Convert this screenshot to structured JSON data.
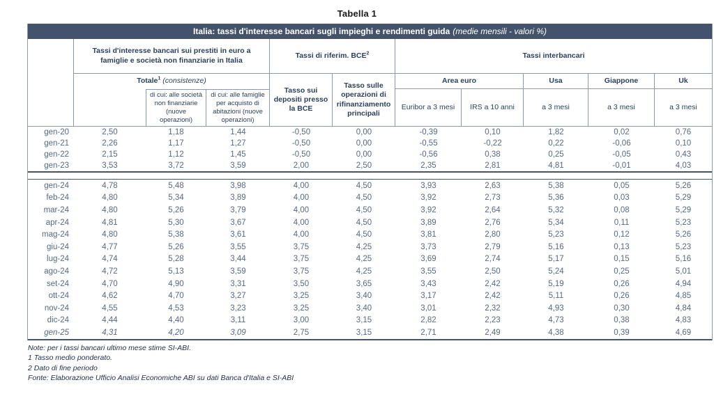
{
  "page_title": "Tabella 1",
  "table": {
    "title_main": "Italia: tassi d'interesse bancari sugli impieghi e rendimenti guida",
    "title_italic": "(medie mensili - valori %)",
    "colors": {
      "titlebar_bg": "#44526b",
      "header_text": "#2c4158",
      "data_text": "#57697f",
      "thin_border": "#8a99ab",
      "thick_border": "#44526b"
    },
    "groups": {
      "loans": "Tassi d'interesse bancari sui prestiti in euro a famiglie e società non finanziarie in Italia",
      "bce": "Tassi di riferim. BCE",
      "bce_sup": "2",
      "interbank": "Tassi interbancari"
    },
    "subheaders": {
      "totale": "Totale",
      "totale_sup": "1",
      "totale_note": "(consistenze)",
      "societa": "di cui: alle società non finanziarie (nuove operazioni)",
      "famiglie": "di cui: alle famiglie per acquisto di abitazioni (nuove operazioni)",
      "depositi": "Tasso sui depositi presso la BCE",
      "rifinanziamento": "Tasso sulle operazioni di rifinanziamento principali",
      "area_euro": "Area euro",
      "usa": "Usa",
      "giappone": "Giappone",
      "uk": "Uk",
      "euribor": "Euribor a 3 mesi",
      "irs": "IRS a 10 anni",
      "usa_3m": "a 3 mesi",
      "giappone_3m": "a 3 mesi",
      "uk_3m": "a 3 mesi"
    },
    "block1": [
      {
        "label": "gen-20",
        "values": [
          "2,50",
          "1,18",
          "1,44",
          "-0,50",
          "0,00",
          "-0,39",
          "0,10",
          "1,82",
          "0,02",
          "0,76"
        ]
      },
      {
        "label": "gen-21",
        "values": [
          "2,26",
          "1,17",
          "1,27",
          "-0,50",
          "0,00",
          "-0,55",
          "-0,22",
          "0,22",
          "-0,06",
          "0,10"
        ]
      },
      {
        "label": "gen-22",
        "values": [
          "2,15",
          "1,12",
          "1,45",
          "-0,50",
          "0,00",
          "-0,56",
          "0,38",
          "0,25",
          "-0,05",
          "0,43"
        ]
      },
      {
        "label": "gen-23",
        "values": [
          "3,53",
          "3,72",
          "3,59",
          "2,00",
          "2,50",
          "2,35",
          "2,81",
          "4,81",
          "-0,01",
          "4,03"
        ]
      }
    ],
    "block2": [
      {
        "label": "gen-24",
        "values": [
          "4,78",
          "5,48",
          "3,98",
          "4,00",
          "4,50",
          "3,93",
          "2,63",
          "5,38",
          "0,05",
          "5,26"
        ]
      },
      {
        "label": "feb-24",
        "values": [
          "4,80",
          "5,34",
          "3,89",
          "4,00",
          "4,50",
          "3,92",
          "2,73",
          "5,36",
          "0,03",
          "5,29"
        ]
      },
      {
        "label": "mar-24",
        "values": [
          "4,80",
          "5,26",
          "3,79",
          "4,00",
          "4,50",
          "3,92",
          "2,64",
          "5,32",
          "0,08",
          "5,29"
        ]
      },
      {
        "label": "apr-24",
        "values": [
          "4,81",
          "5,30",
          "3,67",
          "4,00",
          "4,50",
          "3,89",
          "2,76",
          "5,34",
          "0,11",
          "5,23"
        ]
      },
      {
        "label": "mag-24",
        "values": [
          "4,80",
          "5,38",
          "3,61",
          "4,00",
          "4,50",
          "3,81",
          "2,80",
          "5,23",
          "0,12",
          "5,26"
        ]
      },
      {
        "label": "giu-24",
        "values": [
          "4,77",
          "5,26",
          "3,55",
          "3,75",
          "4,25",
          "3,73",
          "2,79",
          "5,16",
          "0,13",
          "5,23"
        ]
      },
      {
        "label": "lug-24",
        "values": [
          "4,74",
          "5,28",
          "3,44",
          "3,75",
          "4,25",
          "3,69",
          "2,74",
          "5,17",
          "0,15",
          "5,16"
        ]
      },
      {
        "label": "ago-24",
        "values": [
          "4,72",
          "5,13",
          "3,59",
          "3,75",
          "4,25",
          "3,55",
          "2,50",
          "5,24",
          "0,25",
          "5,01"
        ]
      },
      {
        "label": "set-24",
        "values": [
          "4,70",
          "4,90",
          "3,31",
          "3,50",
          "3,65",
          "3,43",
          "2,42",
          "5,19",
          "0,26",
          "4,94"
        ]
      },
      {
        "label": "ott-24",
        "values": [
          "4,62",
          "4,70",
          "3,27",
          "3,25",
          "3,40",
          "3,17",
          "2,42",
          "5,11",
          "0,26",
          "4,85"
        ]
      },
      {
        "label": "nov-24",
        "values": [
          "4,55",
          "4,53",
          "3,23",
          "3,25",
          "3,40",
          "3,01",
          "2,32",
          "4,93",
          "0,30",
          "4,84"
        ]
      },
      {
        "label": "dic-24",
        "values": [
          "4,44",
          "4,40",
          "3,11",
          "3,00",
          "3,15",
          "2,82",
          "2,23",
          "4,73",
          "0,38",
          "4,83"
        ]
      },
      {
        "label": "gen-25",
        "values": [
          "4,31",
          "4,20",
          "3,09",
          "2,75",
          "3,15",
          "2,71",
          "2,49",
          "4,38",
          "0,39",
          "4,69"
        ],
        "italic": true,
        "italic_value_count": 3
      }
    ],
    "notes": [
      "Note: per i tassi bancari ultimo mese stime SI-ABI.",
      "1 Tasso medio ponderato.",
      "2 Dato di fine periodo",
      "Fonte: Elaborazione Ufficio Analisi Economiche ABI su dati Banca d'Italia e SI-ABI"
    ]
  }
}
